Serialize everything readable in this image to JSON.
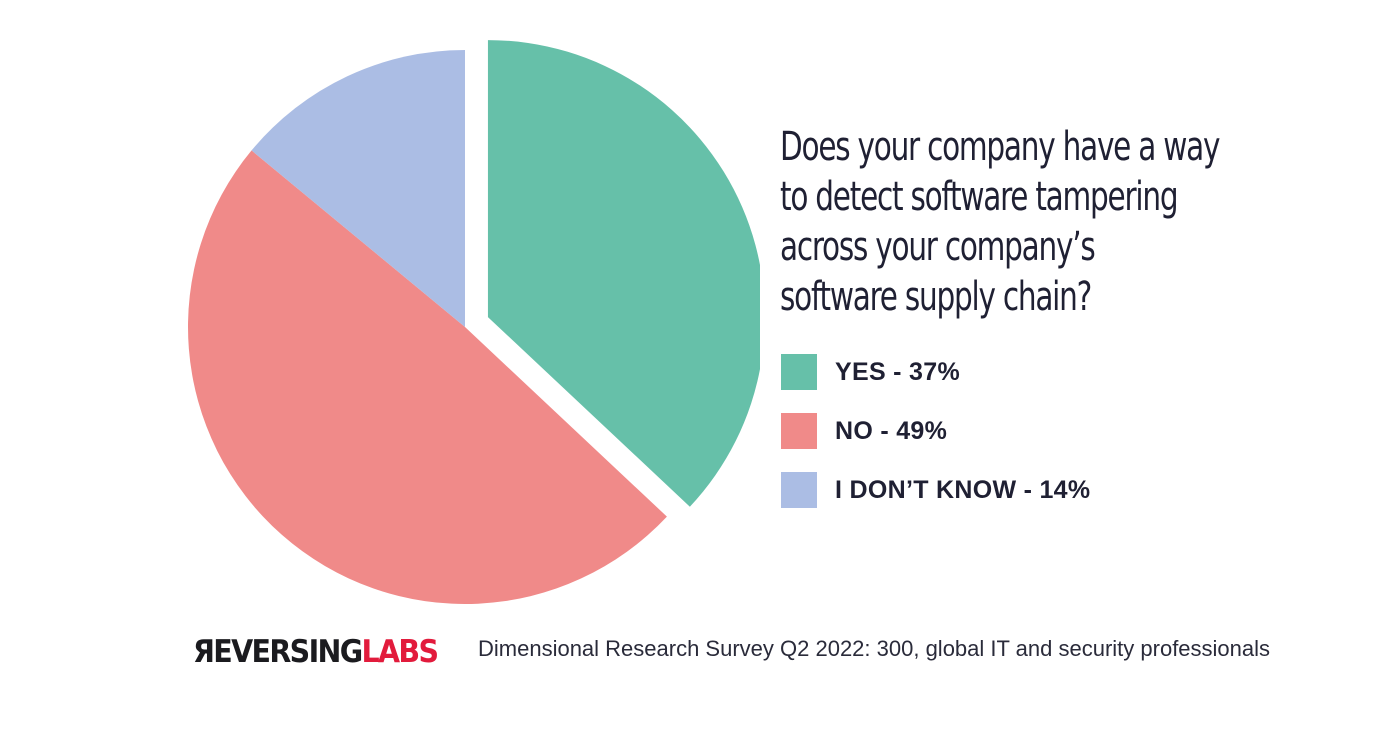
{
  "chart_data": {
    "type": "pie",
    "title": "Does your company have a way to detect software tampering across your company’s software supply chain?",
    "title_lines": [
      "Does your company have a way",
      "to detect software tampering",
      "across your company’s",
      "software supply chain?"
    ],
    "slices": [
      {
        "name": "YES",
        "value": 37,
        "color": "#66c0a9",
        "label": "YES - 37%",
        "exploded": true
      },
      {
        "name": "NO",
        "value": 49,
        "color": "#f08a89",
        "label": "NO - 49%",
        "exploded": false
      },
      {
        "name": "I DON’T KNOW",
        "value": 14,
        "color": "#abbde4",
        "label": "I DON’T KNOW - 14%",
        "exploded": false
      }
    ],
    "legend_position": "right"
  },
  "footer": {
    "logo_part1": "ЯEVERSING",
    "logo_part2": "LABS",
    "source": "Dimensional Research Survey Q2 2022: 300, global IT and security professionals"
  }
}
